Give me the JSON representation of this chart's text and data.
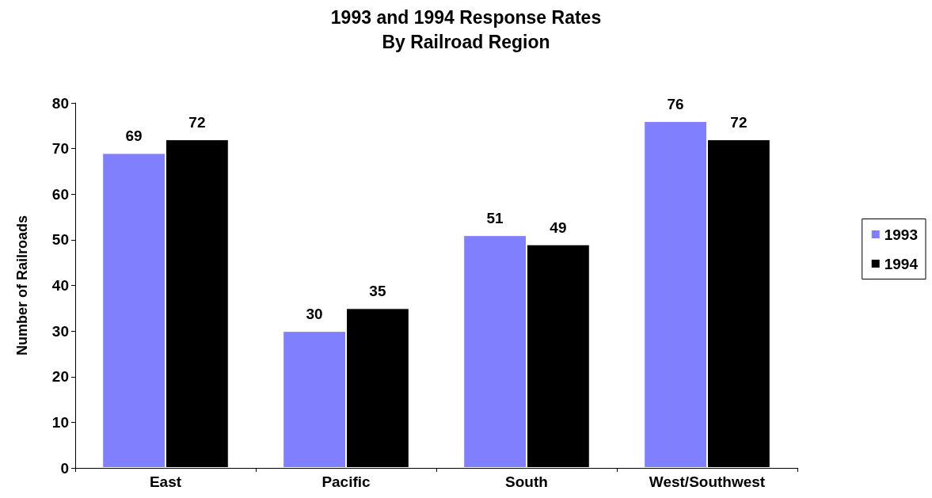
{
  "chart_data": {
    "type": "bar",
    "title": "1993 and 1994 Response Rates",
    "subtitle": "By Railroad Region",
    "ylabel": "Number of Railroads",
    "categories": [
      "East",
      "Pacific",
      "South",
      "West/Southwest"
    ],
    "series": [
      {
        "name": "1993",
        "color": "#8080ff",
        "values": [
          69,
          30,
          51,
          76
        ]
      },
      {
        "name": "1994",
        "color": "#000000",
        "values": [
          72,
          35,
          49,
          72
        ]
      }
    ],
    "ylim": [
      0,
      80
    ],
    "yticks": [
      0,
      10,
      20,
      30,
      40,
      50,
      60,
      70,
      80
    ],
    "data_labels": true,
    "legend": "right",
    "grid": false
  }
}
